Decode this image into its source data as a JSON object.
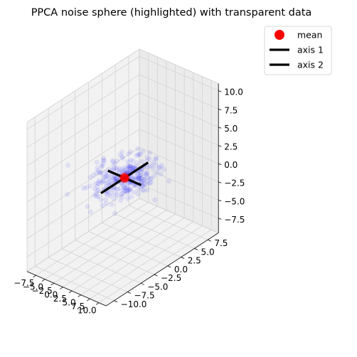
{
  "chart_data": {
    "type": "scatter",
    "projection": "3d",
    "title": "PPCA noise sphere (highlighted) with transparent data",
    "xlabel": "",
    "ylabel": "",
    "zlabel": "",
    "grid": true,
    "legend_position": "top-right",
    "xlim": [
      -10,
      12
    ],
    "ylim": [
      -11.5,
      9.5
    ],
    "zlim": [
      -9.5,
      11
    ],
    "x_ticks": [
      "−7.5",
      "−5.0",
      "−2.5",
      "0.0",
      "2.5",
      "5.0",
      "7.5",
      "10.0"
    ],
    "y_ticks": [
      "−10.0",
      "−7.5",
      "−5.0",
      "−2.5",
      "0.0",
      "2.5",
      "5.0",
      "7.5"
    ],
    "z_ticks": [
      "−7.5",
      "−5.0",
      "−2.5",
      "0.0",
      "2.5",
      "5.0",
      "7.5",
      "10.0"
    ],
    "x_tick_values": [
      -7.5,
      -5,
      -2.5,
      0,
      2.5,
      5,
      7.5,
      10
    ],
    "y_tick_values": [
      -10,
      -7.5,
      -5,
      -2.5,
      0,
      2.5,
      5,
      7.5
    ],
    "z_tick_values": [
      -7.5,
      -5,
      -2.5,
      0,
      2.5,
      5,
      7.5,
      10
    ],
    "legend": [
      {
        "label": "mean",
        "marker": "circle",
        "color": "#ff0000"
      },
      {
        "label": "axis 1",
        "marker": "line",
        "color": "#000000"
      },
      {
        "label": "axis 2",
        "marker": "line",
        "color": "#000000"
      }
    ],
    "mean": {
      "x": 0.0,
      "y": 0.0,
      "z": 0.0,
      "color": "#ff0000"
    },
    "axes_segments": [
      {
        "name": "axis 1",
        "from": [
          -4.6,
          0.0,
          0.0
        ],
        "to": [
          4.6,
          0.0,
          0.0
        ],
        "color": "#000000"
      },
      {
        "name": "axis 2",
        "from": [
          0.0,
          -4.4,
          0.0
        ],
        "to": [
          0.0,
          4.4,
          0.0
        ],
        "color": "#000000"
      }
    ],
    "data_series": {
      "name": "data",
      "color": "#0000ff",
      "alpha": 0.08,
      "count": 300,
      "center": [
        0.0,
        0.0,
        0.0
      ],
      "spread": [
        3.0,
        2.4,
        0.9
      ]
    },
    "noise_sphere": {
      "center": [
        0.0,
        0.0,
        0.0
      ],
      "radius": 1.0,
      "color": "#ff0000"
    }
  }
}
